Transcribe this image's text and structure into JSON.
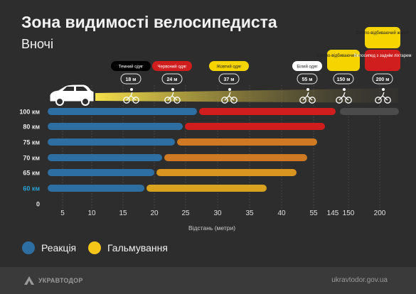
{
  "header": {
    "title": "Зона видимості велосипедиста",
    "subtitle": "Вночі"
  },
  "chart_data": {
    "type": "bar",
    "orientation": "horizontal",
    "stacked": true,
    "xlabel": "Відстань (метри)",
    "x_ticks": [
      "5",
      "10",
      "15",
      "20",
      "25",
      "30",
      "35",
      "40",
      "55",
      "145",
      "150",
      "200"
    ],
    "categories": [
      "100 км",
      "80 км",
      "75 км",
      "70 км",
      "65 км",
      "60 км",
      "0"
    ],
    "series": [
      {
        "name": "Реакція",
        "color": "#2e6fa3",
        "values": [
          26,
          22,
          22,
          20,
          19,
          17,
          0
        ]
      },
      {
        "name": "Гальмування",
        "values": [
          53,
          45,
          37,
          32,
          28,
          22,
          0
        ]
      }
    ],
    "row_colors": {
      "braking": [
        "#d01e1e",
        "#d01e1e",
        "#cf7a22",
        "#cf7a22",
        "#d9951f",
        "#d9a31f",
        null
      ],
      "extra_after_braking": [
        "#4b4b4b",
        null,
        null,
        null,
        null,
        null,
        null
      ]
    },
    "highlight_category": "60 км",
    "highlight_color": "#2aa4d8",
    "visibility_markers": [
      {
        "clothing": "Темний одяг",
        "distance_label": "18 м",
        "clothing_bg": "#000000",
        "clothing_fg": "#ffffff"
      },
      {
        "clothing": "Червоний одяг",
        "distance_label": "24 м",
        "clothing_bg": "#d01e1e",
        "clothing_fg": "#ffffff"
      },
      {
        "clothing": "Жовтий одяг",
        "distance_label": "37 м",
        "clothing_bg": "#f5d400",
        "clothing_fg": "#222222"
      },
      {
        "clothing": "Білий одяг",
        "distance_label": "55 м",
        "clothing_bg": "#ffffff",
        "clothing_fg": "#222222"
      },
      {
        "clothing": "Світло-відбиваючий жилет",
        "distance_label": "150 м",
        "clothing_bg": "#f5d400",
        "clothing_fg": "#222222"
      },
      {
        "clothing": "Світло-відбиваючий жилет",
        "extra": "Велосипед з заднім ліхтарем",
        "distance_label": "200 м",
        "clothing_bg": "#f5d400",
        "clothing_fg": "#222222",
        "extra_bg": "#d01e1e",
        "extra_fg": "#ffffff"
      }
    ],
    "legend": {
      "placement": "bottom-left"
    }
  },
  "legend": {
    "items": [
      {
        "label": "Реакція",
        "color": "#2e6fa3"
      },
      {
        "label": "Гальмування",
        "color": "#f5c518"
      }
    ]
  },
  "footer": {
    "brand": "УКРАВТОДОР",
    "website": "ukravtodor.gov.ua"
  }
}
